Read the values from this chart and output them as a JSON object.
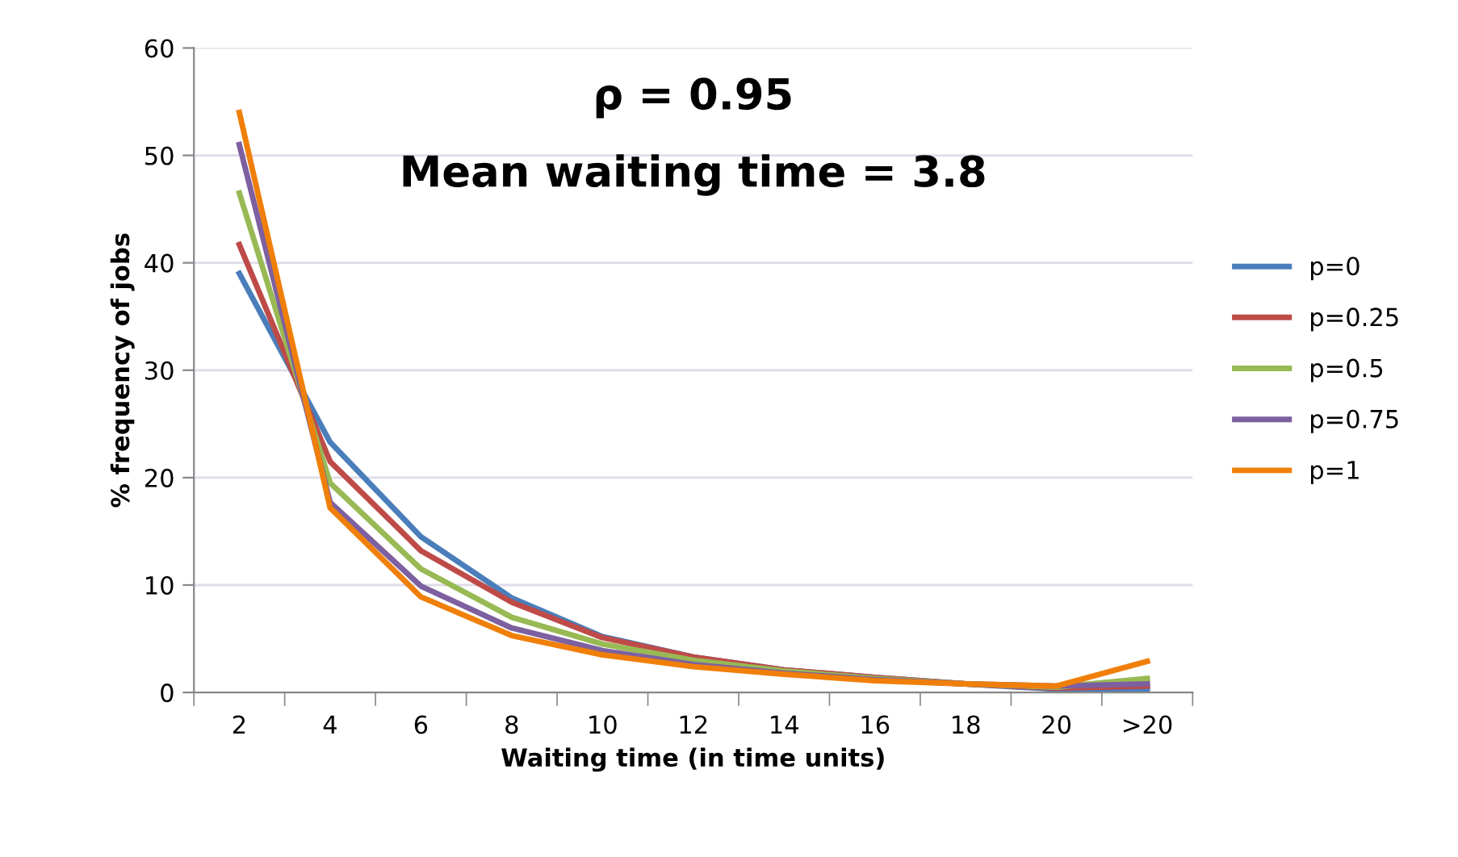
{
  "chart_data": {
    "type": "line",
    "title": "ρ = 0.95",
    "subtitle": "Mean waiting time = 3.8",
    "xlabel": "Waiting time (in time units)",
    "ylabel": "% frequency of jobs",
    "categories": [
      "2",
      "4",
      "6",
      "8",
      "10",
      "12",
      "14",
      "16",
      "18",
      "20",
      ">20"
    ],
    "series": [
      {
        "name": "p=0",
        "color": "#4a7ebb",
        "values": [
          39,
          23.3,
          14.5,
          8.8,
          5.2,
          3.3,
          2.1,
          1.4,
          0.8,
          0.3,
          0.3
        ]
      },
      {
        "name": "p=0.25",
        "color": "#be4b48",
        "values": [
          41.7,
          21.5,
          13.2,
          8.4,
          5.1,
          3.3,
          2.1,
          1.4,
          0.8,
          0.4,
          0.6
        ]
      },
      {
        "name": "p=0.5",
        "color": "#98b954",
        "values": [
          46.5,
          19.5,
          11.5,
          7.0,
          4.5,
          3.0,
          2.0,
          1.3,
          0.8,
          0.5,
          1.3
        ]
      },
      {
        "name": "p=0.75",
        "color": "#7d60a0",
        "values": [
          51,
          17.7,
          9.9,
          6.0,
          3.9,
          2.6,
          1.8,
          1.2,
          0.8,
          0.6,
          0.8
        ]
      },
      {
        "name": "p=1",
        "color": "#f07f09",
        "values": [
          54,
          17.2,
          8.9,
          5.3,
          3.5,
          2.4,
          1.7,
          1.1,
          0.8,
          0.6,
          2.9
        ]
      }
    ],
    "ylim": [
      0,
      60
    ],
    "yticks": [
      0,
      10,
      20,
      30,
      40,
      50,
      60
    ],
    "grid": "y",
    "legend": "right",
    "marker": "none",
    "line_style": "solid"
  }
}
